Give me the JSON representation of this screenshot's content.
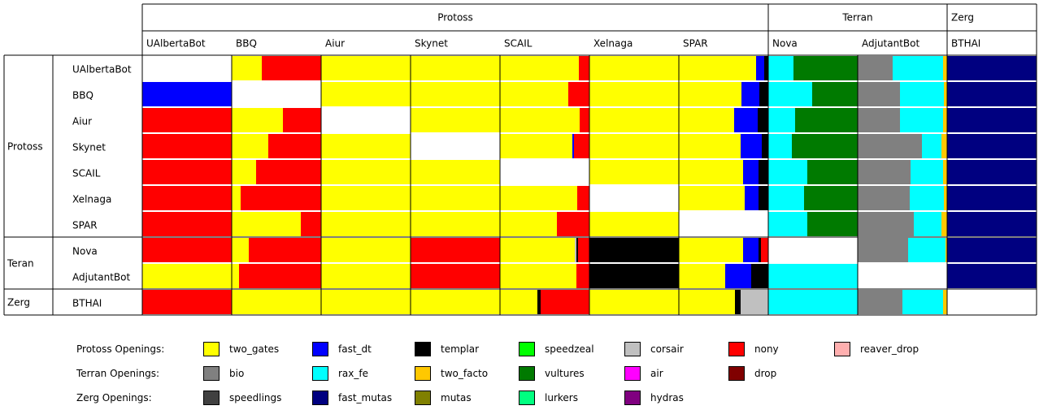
{
  "chart_data": {
    "type": "stacked-bar-matrix",
    "column_groups": [
      {
        "name": "Protoss",
        "bots": [
          "UAlbertaBot",
          "BBQ",
          "Aiur",
          "Skynet",
          "SCAIL",
          "Xelnaga",
          "SPAR"
        ]
      },
      {
        "name": "Terran",
        "bots": [
          "Nova",
          "AdjutantBot"
        ]
      },
      {
        "name": "Zerg",
        "bots": [
          "BTHAI"
        ]
      }
    ],
    "row_groups": [
      {
        "name": "Protoss",
        "bots": [
          "UAlbertaBot",
          "BBQ",
          "Aiur",
          "Skynet",
          "SCAIL",
          "Xelnaga",
          "SPAR"
        ]
      },
      {
        "name": "Teran",
        "bots": [
          "Nova",
          "AdjutantBot"
        ]
      },
      {
        "name": "Zerg",
        "bots": [
          "BTHAI"
        ]
      }
    ],
    "cells": [
      [
        [],
        [
          [
            "two_gates",
            0.34
          ],
          [
            "nony",
            0.66
          ]
        ],
        [
          [
            "two_gates",
            1.0
          ]
        ],
        [
          [
            "two_gates",
            1.0
          ]
        ],
        [
          [
            "two_gates",
            0.88
          ],
          [
            "nony",
            0.12
          ]
        ],
        [
          [
            "two_gates",
            1.0
          ]
        ],
        [
          [
            "two_gates",
            0.86
          ],
          [
            "fast_dt",
            0.09
          ],
          [
            "templar",
            0.05
          ]
        ],
        [
          [
            "rax_fe",
            0.28
          ],
          [
            "vultures",
            0.72
          ]
        ],
        [
          [
            "bio",
            0.39
          ],
          [
            "rax_fe",
            0.56
          ],
          [
            "two_facto",
            0.05
          ]
        ],
        [
          [
            "fast_mutas",
            1.0
          ]
        ]
      ],
      [
        [
          [
            "fast_dt",
            1.0
          ]
        ],
        [],
        [
          [
            "two_gates",
            1.0
          ]
        ],
        [
          [
            "two_gates",
            1.0
          ]
        ],
        [
          [
            "two_gates",
            0.76
          ],
          [
            "nony",
            0.24
          ]
        ],
        [
          [
            "two_gates",
            1.0
          ]
        ],
        [
          [
            "two_gates",
            0.7
          ],
          [
            "fast_dt",
            0.2
          ],
          [
            "templar",
            0.1
          ]
        ],
        [
          [
            "rax_fe",
            0.49
          ],
          [
            "vultures",
            0.51
          ]
        ],
        [
          [
            "bio",
            0.47
          ],
          [
            "rax_fe",
            0.49
          ],
          [
            "two_facto",
            0.04
          ]
        ],
        [
          [
            "fast_mutas",
            1.0
          ]
        ]
      ],
      [
        [
          [
            "nony",
            1.0
          ]
        ],
        [
          [
            "two_gates",
            0.57
          ],
          [
            "nony",
            0.43
          ]
        ],
        [],
        [
          [
            "two_gates",
            1.0
          ]
        ],
        [
          [
            "two_gates",
            0.89
          ],
          [
            "nony",
            0.11
          ]
        ],
        [
          [
            "two_gates",
            1.0
          ]
        ],
        [
          [
            "two_gates",
            0.62
          ],
          [
            "fast_dt",
            0.26
          ],
          [
            "templar",
            0.12
          ]
        ],
        [
          [
            "rax_fe",
            0.3
          ],
          [
            "vultures",
            0.7
          ]
        ],
        [
          [
            "bio",
            0.47
          ],
          [
            "rax_fe",
            0.48
          ],
          [
            "two_facto",
            0.05
          ]
        ],
        [
          [
            "fast_mutas",
            1.0
          ]
        ]
      ],
      [
        [
          [
            "nony",
            1.0
          ]
        ],
        [
          [
            "two_gates",
            0.41
          ],
          [
            "nony",
            0.59
          ]
        ],
        [
          [
            "two_gates",
            1.0
          ]
        ],
        [],
        [
          [
            "two_gates",
            0.81
          ],
          [
            "fast_dt",
            0.02
          ],
          [
            "nony",
            0.17
          ]
        ],
        [
          [
            "two_gates",
            1.0
          ]
        ],
        [
          [
            "two_gates",
            0.69
          ],
          [
            "fast_dt",
            0.24
          ],
          [
            "templar",
            0.07
          ]
        ],
        [
          [
            "rax_fe",
            0.26
          ],
          [
            "vultures",
            0.74
          ]
        ],
        [
          [
            "bio",
            0.72
          ],
          [
            "rax_fe",
            0.22
          ],
          [
            "two_facto",
            0.06
          ]
        ],
        [
          [
            "fast_mutas",
            1.0
          ]
        ]
      ],
      [
        [
          [
            "nony",
            1.0
          ]
        ],
        [
          [
            "two_gates",
            0.27
          ],
          [
            "nony",
            0.73
          ]
        ],
        [
          [
            "two_gates",
            1.0
          ]
        ],
        [
          [
            "two_gates",
            1.0
          ]
        ],
        [],
        [
          [
            "two_gates",
            1.0
          ]
        ],
        [
          [
            "two_gates",
            0.72
          ],
          [
            "fast_dt",
            0.17
          ],
          [
            "templar",
            0.11
          ]
        ],
        [
          [
            "rax_fe",
            0.44
          ],
          [
            "vultures",
            0.56
          ]
        ],
        [
          [
            "bio",
            0.59
          ],
          [
            "rax_fe",
            0.36
          ],
          [
            "two_facto",
            0.05
          ]
        ],
        [
          [
            "fast_mutas",
            1.0
          ]
        ]
      ],
      [
        [
          [
            "nony",
            1.0
          ]
        ],
        [
          [
            "two_gates",
            0.1
          ],
          [
            "nony",
            0.9
          ]
        ],
        [
          [
            "two_gates",
            1.0
          ]
        ],
        [
          [
            "two_gates",
            1.0
          ]
        ],
        [
          [
            "two_gates",
            0.86
          ],
          [
            "nony",
            0.14
          ]
        ],
        [],
        [
          [
            "two_gates",
            0.74
          ],
          [
            "fast_dt",
            0.15
          ],
          [
            "templar",
            0.11
          ]
        ],
        [
          [
            "rax_fe",
            0.4
          ],
          [
            "vultures",
            0.6
          ]
        ],
        [
          [
            "bio",
            0.58
          ],
          [
            "rax_fe",
            0.38
          ],
          [
            "two_facto",
            0.04
          ]
        ],
        [
          [
            "fast_mutas",
            1.0
          ]
        ]
      ],
      [
        [
          [
            "nony",
            1.0
          ]
        ],
        [
          [
            "two_gates",
            0.77
          ],
          [
            "nony",
            0.23
          ]
        ],
        [
          [
            "two_gates",
            1.0
          ]
        ],
        [
          [
            "two_gates",
            1.0
          ]
        ],
        [
          [
            "two_gates",
            0.64
          ],
          [
            "nony",
            0.36
          ]
        ],
        [
          [
            "two_gates",
            1.0
          ]
        ],
        [],
        [
          [
            "rax_fe",
            0.44
          ],
          [
            "vultures",
            0.56
          ]
        ],
        [
          [
            "bio",
            0.63
          ],
          [
            "rax_fe",
            0.31
          ],
          [
            "two_facto",
            0.06
          ]
        ],
        [
          [
            "fast_mutas",
            1.0
          ]
        ]
      ],
      [
        [
          [
            "nony",
            1.0
          ]
        ],
        [
          [
            "two_gates",
            0.19
          ],
          [
            "nony",
            0.81
          ]
        ],
        [
          [
            "two_gates",
            1.0
          ]
        ],
        [
          [
            "nony",
            1.0
          ]
        ],
        [
          [
            "two_gates",
            0.84
          ],
          [
            "corsair",
            0.02
          ],
          [
            "templar",
            0.02
          ],
          [
            "nony",
            0.12
          ]
        ],
        [
          [
            "templar",
            1.0
          ]
        ],
        [
          [
            "two_gates",
            0.72
          ],
          [
            "fast_dt",
            0.17
          ],
          [
            "templar",
            0.03
          ],
          [
            "nony",
            0.08
          ]
        ],
        [],
        [
          [
            "bio",
            0.56
          ],
          [
            "rax_fe",
            0.42
          ],
          [
            "two_facto",
            0.02
          ]
        ],
        [
          [
            "fast_mutas",
            1.0
          ]
        ]
      ],
      [
        [
          [
            "two_gates",
            1.0
          ]
        ],
        [
          [
            "two_gates",
            0.08
          ],
          [
            "nony",
            0.92
          ]
        ],
        [
          [
            "two_gates",
            1.0
          ]
        ],
        [
          [
            "nony",
            1.0
          ]
        ],
        [
          [
            "two_gates",
            0.85
          ],
          [
            "nony",
            0.15
          ]
        ],
        [
          [
            "templar",
            1.0
          ]
        ],
        [
          [
            "two_gates",
            0.52
          ],
          [
            "fast_dt",
            0.29
          ],
          [
            "templar",
            0.19
          ]
        ],
        [
          [
            "rax_fe",
            1.0
          ]
        ],
        [],
        [
          [
            "fast_mutas",
            1.0
          ]
        ]
      ],
      [
        [
          [
            "nony",
            1.0
          ]
        ],
        [
          [
            "two_gates",
            1.0
          ]
        ],
        [
          [
            "two_gates",
            1.0
          ]
        ],
        [
          [
            "two_gates",
            1.0
          ]
        ],
        [
          [
            "two_gates",
            0.42
          ],
          [
            "templar",
            0.04
          ],
          [
            "nony",
            0.54
          ]
        ],
        [
          [
            "two_gates",
            1.0
          ]
        ],
        [
          [
            "two_gates",
            0.63
          ],
          [
            "templar",
            0.06
          ],
          [
            "corsair",
            0.31
          ]
        ],
        [
          [
            "rax_fe",
            1.0
          ]
        ],
        [
          [
            "bio",
            0.5
          ],
          [
            "rax_fe",
            0.45
          ],
          [
            "two_facto",
            0.05
          ]
        ],
        []
      ]
    ],
    "legend": [
      {
        "title": "Protoss Openings:",
        "items": [
          {
            "name": "two_gates",
            "color": "#ffff00"
          },
          {
            "name": "fast_dt",
            "color": "#0000ff"
          },
          {
            "name": "templar",
            "color": "#000000"
          },
          {
            "name": "speedzeal",
            "color": "#00ff00"
          },
          {
            "name": "corsair",
            "color": "#c0c0c0"
          },
          {
            "name": "nony",
            "color": "#ff0000"
          },
          {
            "name": "reaver_drop",
            "color": "#ffafaf"
          }
        ]
      },
      {
        "title": "Terran Openings:",
        "items": [
          {
            "name": "bio",
            "color": "#808080"
          },
          {
            "name": "rax_fe",
            "color": "#00ffff"
          },
          {
            "name": "two_facto",
            "color": "#ffc800"
          },
          {
            "name": "vultures",
            "color": "#007a00"
          },
          {
            "name": "air",
            "color": "#ff00ff"
          },
          {
            "name": "drop",
            "color": "#800000"
          }
        ]
      },
      {
        "title": "Zerg Openings:",
        "items": [
          {
            "name": "speedlings",
            "color": "#404040"
          },
          {
            "name": "fast_mutas",
            "color": "#000080"
          },
          {
            "name": "mutas",
            "color": "#808000"
          },
          {
            "name": "lurkers",
            "color": "#00ff80"
          },
          {
            "name": "hydras",
            "color": "#800080"
          }
        ]
      }
    ]
  }
}
